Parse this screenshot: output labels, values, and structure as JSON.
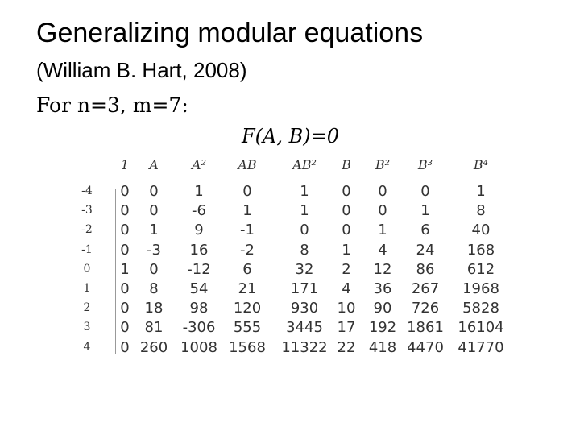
{
  "header": {
    "title": "Generalizing modular equations",
    "subtitle": "(William B. Hart, 2008)"
  },
  "intro": "For n=3, m=7:",
  "equation": "F(A, B)=0",
  "table": {
    "columns": [
      "1",
      "A",
      "A²",
      "AB",
      "AB²",
      "B",
      "B²",
      "B³",
      "B⁴"
    ],
    "rows": [
      {
        "label": -4,
        "cells": [
          0,
          0,
          1,
          0,
          1,
          0,
          0,
          0,
          1
        ]
      },
      {
        "label": -3,
        "cells": [
          0,
          0,
          -6,
          1,
          1,
          0,
          0,
          1,
          8
        ]
      },
      {
        "label": -2,
        "cells": [
          0,
          1,
          9,
          -1,
          0,
          0,
          1,
          6,
          40
        ]
      },
      {
        "label": -1,
        "cells": [
          0,
          -3,
          16,
          -2,
          8,
          1,
          4,
          24,
          168
        ]
      },
      {
        "label": 0,
        "cells": [
          1,
          0,
          -12,
          6,
          32,
          2,
          12,
          86,
          612
        ]
      },
      {
        "label": 1,
        "cells": [
          0,
          8,
          54,
          21,
          171,
          4,
          36,
          267,
          1968
        ]
      },
      {
        "label": 2,
        "cells": [
          0,
          18,
          98,
          120,
          930,
          10,
          90,
          726,
          5828
        ]
      },
      {
        "label": 3,
        "cells": [
          0,
          81,
          -306,
          555,
          3445,
          17,
          192,
          1861,
          16104
        ]
      },
      {
        "label": 4,
        "cells": [
          0,
          260,
          1008,
          1568,
          11322,
          22,
          418,
          4470,
          41770
        ]
      }
    ]
  }
}
